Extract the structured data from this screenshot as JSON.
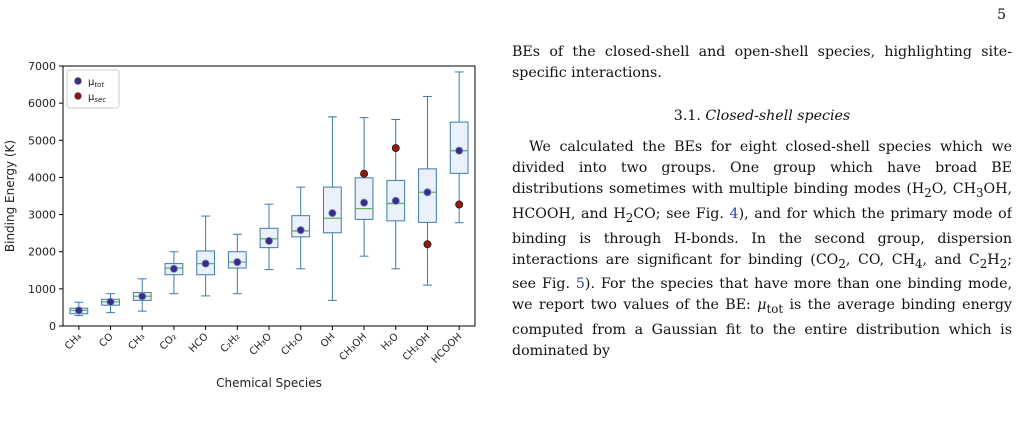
{
  "page": {
    "number": "5"
  },
  "figure": {
    "chart_data": {
      "type": "box",
      "xlabel": "Chemical Species",
      "ylabel": "Binding Energy (K)",
      "ylim": [
        0,
        7000
      ],
      "yticks": [
        0,
        1000,
        2000,
        3000,
        4000,
        5000,
        6000,
        7000
      ],
      "categories": [
        "CH₄",
        "CO",
        "CH₃",
        "CO₂",
        "HCO",
        "C₂H₂",
        "CH₃O",
        "CH₂O",
        "OH",
        "CH₃OH",
        "H₂O",
        "CH₂OH",
        "HCOOH"
      ],
      "boxes": [
        {
          "min": 280,
          "q1": 330,
          "median": 420,
          "q3": 480,
          "max": 640
        },
        {
          "min": 360,
          "q1": 560,
          "median": 650,
          "q3": 720,
          "max": 870
        },
        {
          "min": 400,
          "q1": 690,
          "median": 800,
          "q3": 900,
          "max": 1270
        },
        {
          "min": 870,
          "q1": 1380,
          "median": 1560,
          "q3": 1680,
          "max": 2000
        },
        {
          "min": 810,
          "q1": 1380,
          "median": 1680,
          "q3": 2020,
          "max": 2960
        },
        {
          "min": 870,
          "q1": 1560,
          "median": 1720,
          "q3": 2000,
          "max": 2470
        },
        {
          "min": 1520,
          "q1": 2110,
          "median": 2350,
          "q3": 2630,
          "max": 3280
        },
        {
          "min": 1540,
          "q1": 2400,
          "median": 2560,
          "q3": 2970,
          "max": 3740
        },
        {
          "min": 690,
          "q1": 2510,
          "median": 2900,
          "q3": 3740,
          "max": 5630
        },
        {
          "min": 1880,
          "q1": 2870,
          "median": 3160,
          "q3": 3990,
          "max": 5610
        },
        {
          "min": 1540,
          "q1": 2830,
          "median": 3300,
          "q3": 3920,
          "max": 5560
        },
        {
          "min": 1100,
          "q1": 2790,
          "median": 3600,
          "q3": 4230,
          "max": 6180
        },
        {
          "min": 2780,
          "q1": 4110,
          "median": 4720,
          "q3": 5490,
          "max": 6840
        }
      ],
      "series": [
        {
          "name": "μtot",
          "values": [
            420,
            650,
            800,
            1540,
            1680,
            1720,
            2290,
            2580,
            3040,
            3320,
            3370,
            3600,
            4720
          ]
        },
        {
          "name": "μsec",
          "points": [
            {
              "index": 9,
              "value": 4100
            },
            {
              "index": 10,
              "value": 4790
            },
            {
              "index": 11,
              "value": 2200
            },
            {
              "index": 12,
              "value": 3270
            }
          ]
        }
      ],
      "legend": {
        "placement": "top-left",
        "items": [
          "μ",
          "μ"
        ],
        "subscripts": [
          "tot",
          "sec"
        ]
      },
      "colors": {
        "box_fill": "#eaf1fa",
        "box_edge": "#3d7bac",
        "whisker": "#3d7bac",
        "median": "#6bb35a",
        "mu_tot": "#3f2a8c",
        "mu_sec": "#8b1a10"
      }
    }
  },
  "text": {
    "intro": "BEs of the closed-shell and open-shell species, highlighting site-specific interactions.",
    "section_number": "3.1.",
    "section_title": "Closed-shell species",
    "body_parts": [
      "We calculated the BEs for eight closed-shell species which we divided into two groups. One group which have broad BE distributions sometimes with multiple binding modes (H",
      "2",
      "O, CH",
      "3",
      "OH, HCOOH, and H",
      "2",
      "CO; see Fig. ",
      "4",
      "), and for which the primary mode of binding is through H-bonds. In the second group, dispersion interactions are significant for binding (CO",
      "2",
      ", CO, CH",
      "4",
      ", and C",
      "2",
      "H",
      "2",
      "; see Fig. ",
      "5",
      "). For the species that have more than one binding mode, we report two values of the BE: ",
      "μ",
      "tot",
      " is the average binding energy computed from a Gaussian fit to the entire distribution which is dominated by"
    ]
  }
}
